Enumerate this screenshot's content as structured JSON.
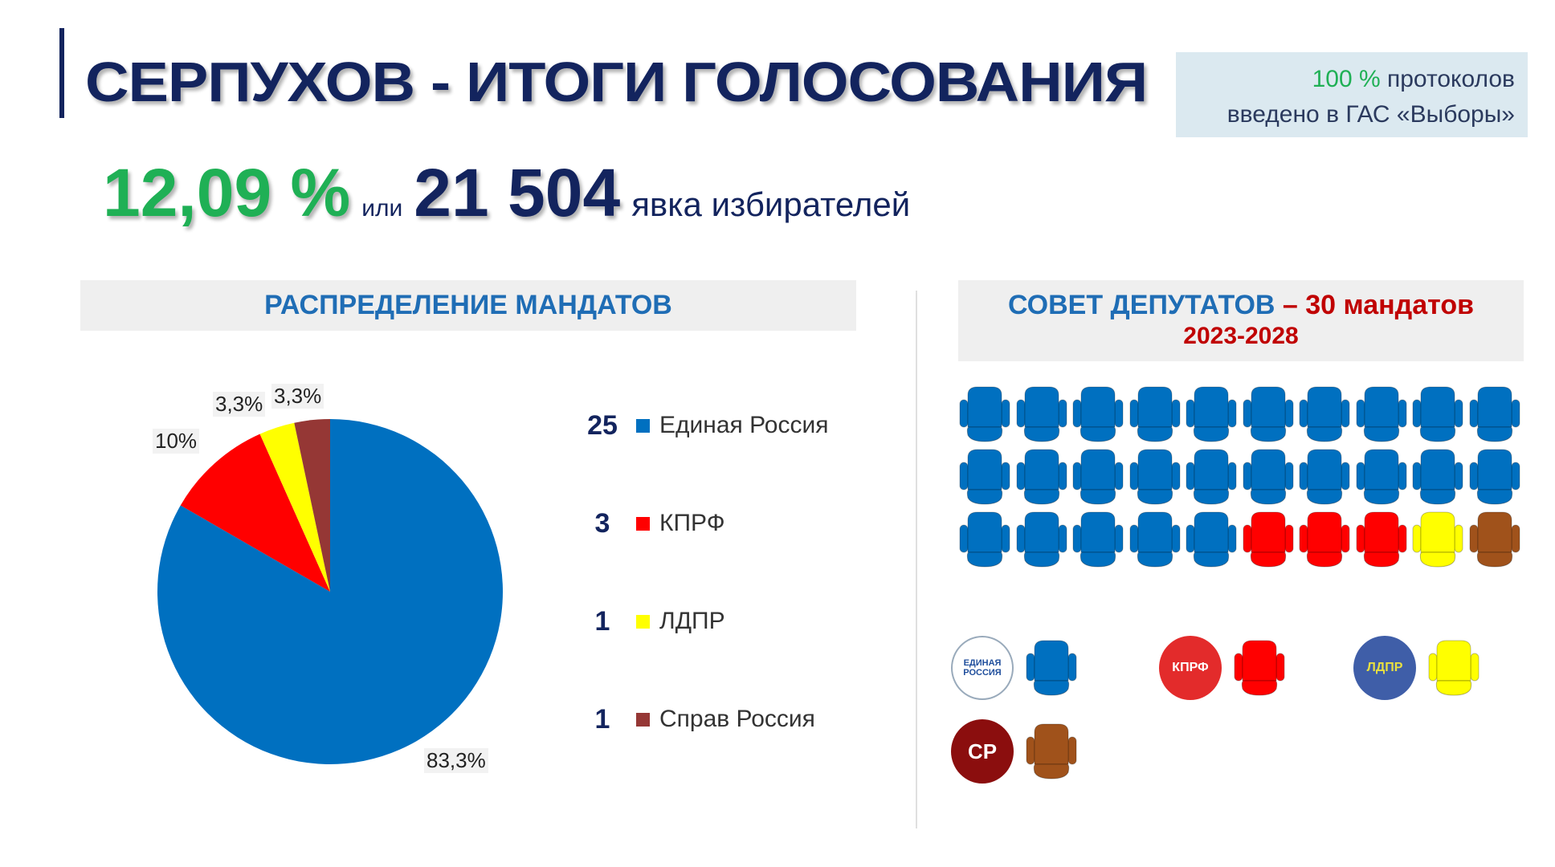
{
  "header": {
    "title": "СЕРПУХОВ - ИТОГИ ГОЛОСОВАНИЯ",
    "protocols_pct": "100 %",
    "protocols_text_1": "протоколов",
    "protocols_text_2": "введено в ГАС «Выборы»"
  },
  "turnout": {
    "percent": "12,09 %",
    "or": "или",
    "count": "21 504",
    "label": "явка избирателей"
  },
  "left_section": {
    "title": "РАСПРЕДЕЛЕНИЕ МАНДАТОВ"
  },
  "right_section": {
    "title": "СОВЕТ ДЕПУТАТОВ",
    "dash": " – ",
    "mandates": "30 мандатов",
    "years": "2023-2028"
  },
  "colors": {
    "ER": "#0070c0",
    "KPRF": "#ff0000",
    "LDPR": "#ffff00",
    "SR": "#953735",
    "SR_seat": "#a0521b"
  },
  "chart_data": {
    "type": "pie",
    "categories": [
      "Единая Россия",
      "КПРФ",
      "ЛДПР",
      "Справ Россия"
    ],
    "values": [
      25,
      3,
      1,
      1
    ],
    "data_labels": [
      "83,3%",
      "10%",
      "3,3%",
      "3,3%"
    ],
    "legend_position": "right"
  },
  "logos": {
    "ER": "ЕДИНАЯ РОССИЯ",
    "KPRF": "КПРФ",
    "LDPR": "ЛДПР",
    "SR": "СР"
  }
}
